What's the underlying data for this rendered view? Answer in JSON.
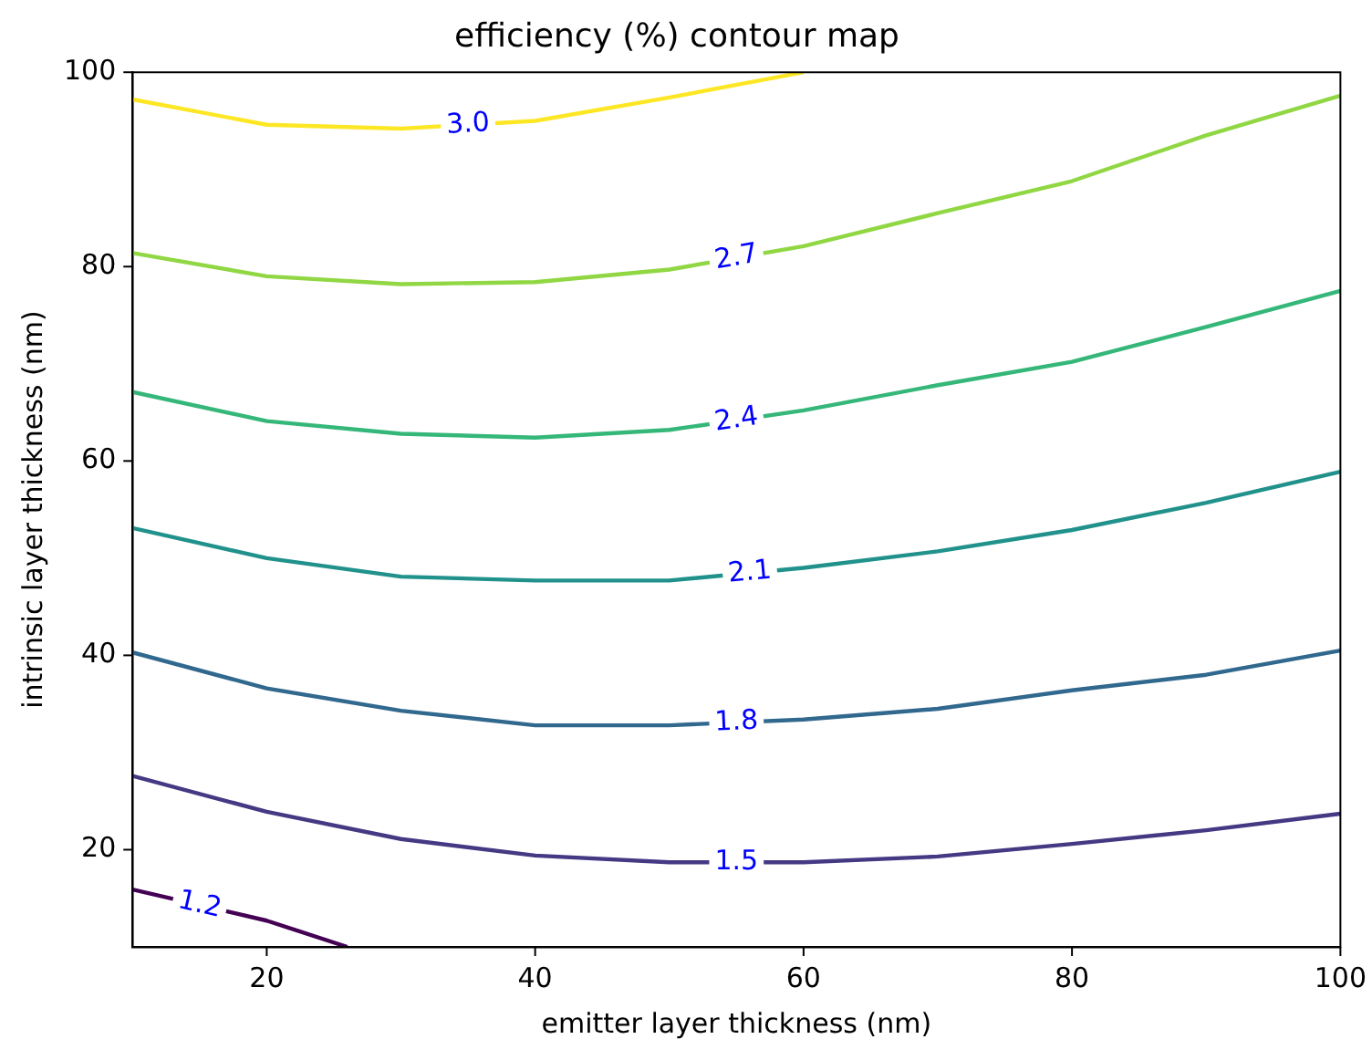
{
  "chart_data": {
    "type": "line",
    "title": "efficiency (%) contour map",
    "xlabel": "emitter layer thickness (nm)",
    "ylabel": "intrinsic layer thickness (nm)",
    "xlim": [
      10,
      100
    ],
    "ylim": [
      10,
      100
    ],
    "xticks": [
      20,
      40,
      60,
      80,
      100
    ],
    "yticks": [
      20,
      40,
      60,
      80,
      100
    ],
    "grid": false,
    "legend": false,
    "marker": "none",
    "line_style": "solid",
    "series": [
      {
        "color": "#440154",
        "x": [
          10,
          20,
          26
        ],
        "values": [
          15.9,
          12.7,
          10.0
        ]
      },
      {
        "color": "#443983",
        "x": [
          10,
          20,
          30,
          40,
          50,
          60,
          70,
          80,
          90,
          100
        ],
        "values": [
          27.6,
          23.9,
          21.1,
          19.4,
          18.7,
          18.7,
          19.3,
          20.6,
          22.0,
          23.7
        ]
      },
      {
        "color": "#31688e",
        "x": [
          10,
          20,
          30,
          40,
          50,
          60,
          70,
          80,
          90,
          100
        ],
        "values": [
          40.3,
          36.6,
          34.3,
          32.8,
          32.8,
          33.4,
          34.5,
          36.4,
          38.0,
          40.5
        ]
      },
      {
        "color": "#21918c",
        "x": [
          10,
          20,
          30,
          40,
          50,
          60,
          70,
          80,
          90,
          100
        ],
        "values": [
          53.1,
          50.0,
          48.1,
          47.7,
          47.7,
          49.0,
          50.7,
          52.9,
          55.7,
          58.9
        ]
      },
      {
        "color": "#35b779",
        "x": [
          10,
          20,
          30,
          40,
          50,
          60,
          70,
          80,
          90,
          100
        ],
        "values": [
          67.1,
          64.1,
          62.8,
          62.4,
          63.2,
          65.2,
          67.8,
          70.2,
          73.8,
          77.5
        ]
      },
      {
        "color": "#90d743",
        "x": [
          10,
          20,
          30,
          40,
          50,
          60,
          70,
          80,
          90,
          100
        ],
        "values": [
          81.4,
          79.0,
          78.2,
          78.4,
          79.7,
          82.1,
          85.5,
          88.8,
          93.5,
          97.6
        ]
      },
      {
        "color": "#fde725",
        "x": [
          10,
          20,
          30,
          40,
          50,
          60
        ],
        "values": [
          97.2,
          94.6,
          94.2,
          95.0,
          97.4,
          100
        ]
      }
    ],
    "annotations": [
      {
        "text": "1.2",
        "x": 15,
        "y": 14.3
      },
      {
        "text": "1.5",
        "x": 55,
        "y": 18.7
      },
      {
        "text": "1.8",
        "x": 55,
        "y": 33.1
      },
      {
        "text": "2.1",
        "x": 56,
        "y": 48.5
      },
      {
        "text": "2.4",
        "x": 55,
        "y": 64.2
      },
      {
        "text": "2.7",
        "x": 55,
        "y": 80.9
      },
      {
        "text": "3.0",
        "x": 35,
        "y": 94.6
      }
    ]
  }
}
